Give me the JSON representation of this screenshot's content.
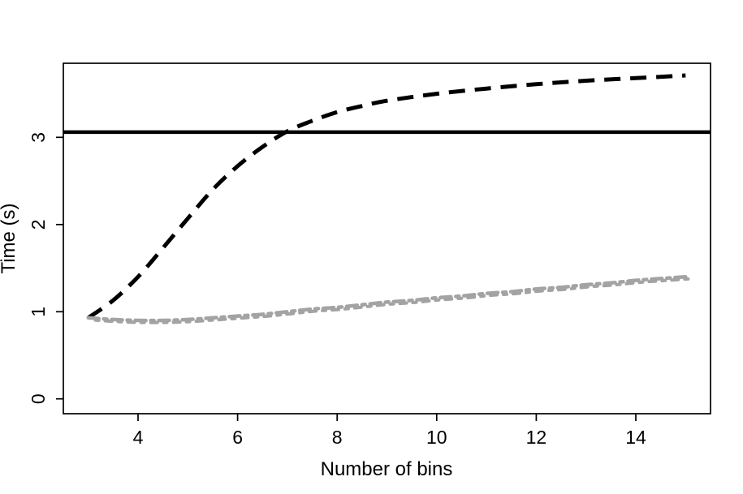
{
  "chart_data": {
    "type": "line",
    "title": "",
    "xlabel": "Number of bins",
    "ylabel": "Time (s)",
    "xlim": [
      2.5,
      15.5
    ],
    "ylim": [
      -0.17,
      3.85
    ],
    "x_ticks": [
      4,
      6,
      8,
      10,
      12,
      14
    ],
    "y_ticks": [
      0,
      1,
      2,
      3
    ],
    "grid": false,
    "legend_position": "none",
    "background": "#ffffff",
    "axis_color": "#000000",
    "reference_line": {
      "name": "solid-horizontal-reference-line",
      "y": 3.06,
      "color": "#000000",
      "style": "solid",
      "width": 4.5,
      "full_width": true
    },
    "series": [
      {
        "name": "black-dashed-series",
        "color": "#000000",
        "style": "dashed",
        "width": 5,
        "x": [
          3,
          3.5,
          4,
          4.5,
          5,
          5.5,
          6,
          6.5,
          7,
          7.5,
          8,
          8.5,
          9,
          10,
          11,
          12,
          13,
          14,
          15
        ],
        "y": [
          0.93,
          1.13,
          1.4,
          1.73,
          2.07,
          2.4,
          2.67,
          2.89,
          3.07,
          3.19,
          3.29,
          3.36,
          3.42,
          3.5,
          3.56,
          3.61,
          3.65,
          3.68,
          3.71
        ]
      },
      {
        "name": "gray-dotdash-series",
        "color": "#a3a3a3",
        "style": "dotdash",
        "width": 4.5,
        "x": [
          3,
          3.5,
          4,
          4.5,
          5,
          5.5,
          6,
          6.5,
          7,
          7.5,
          8,
          8.5,
          9,
          9.5,
          10,
          10.5,
          11,
          11.5,
          12,
          12.5,
          13,
          13.5,
          14,
          14.5,
          15
        ],
        "y": [
          0.93,
          0.91,
          0.9,
          0.9,
          0.91,
          0.93,
          0.95,
          0.97,
          1.0,
          1.03,
          1.05,
          1.08,
          1.11,
          1.13,
          1.16,
          1.18,
          1.21,
          1.23,
          1.26,
          1.28,
          1.31,
          1.33,
          1.36,
          1.38,
          1.4
        ]
      }
    ]
  }
}
